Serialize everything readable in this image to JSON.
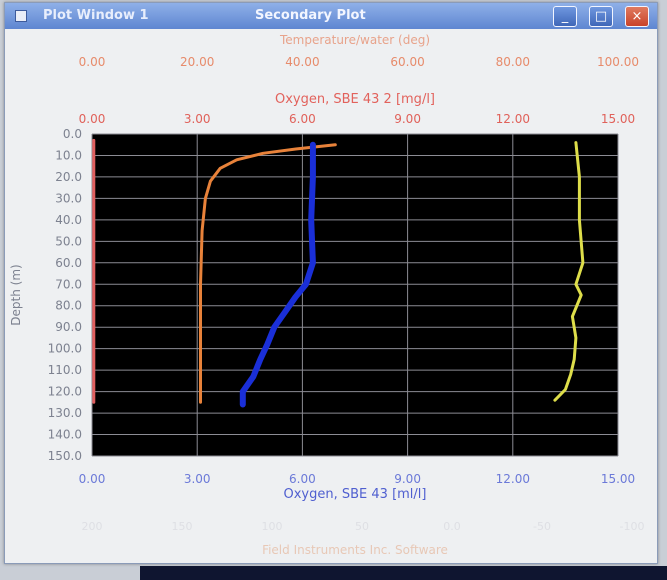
{
  "window": {
    "title_left": "Plot Window 1",
    "title_center": "Secondary Plot",
    "controls": {
      "minimize": "_",
      "maximize": "□",
      "close": "×"
    }
  },
  "chart_data": {
    "type": "line",
    "plot_background": "#000000",
    "grid": true,
    "depth_axis": {
      "label": "Depth (m)",
      "reversed": true,
      "range": [
        0,
        150
      ],
      "ticks": [
        "0.0",
        "10.0",
        "20.0",
        "30.0",
        "40.0",
        "50.0",
        "60.0",
        "70.0",
        "80.0",
        "90.0",
        "100.0",
        "110.0",
        "120.0",
        "130.0",
        "140.0",
        "150.0"
      ]
    },
    "top_axis_1": {
      "label": "Temperature/water (deg)",
      "range": [
        0,
        100
      ],
      "ticks": [
        "0.00",
        "20.00",
        "40.00",
        "60.00",
        "80.00",
        "100.00"
      ],
      "color": "#e78b6b"
    },
    "top_axis_2": {
      "label": "Oxygen, SBE 43 2 [mg/l]",
      "range": [
        0,
        16
      ],
      "ticks": [
        "0.00",
        "3.00",
        "6.00",
        "9.00",
        "12.00",
        "15.00"
      ],
      "color": "#e0615a"
    },
    "bottom_axis": {
      "label": "Oxygen, SBE 43 [ml/l]",
      "range": [
        0,
        15
      ],
      "ticks": [
        "0.00",
        "3.00",
        "6.00",
        "9.00",
        "12.00",
        "15.00"
      ],
      "color": "#4f5fd0"
    },
    "series": [
      {
        "axis": "top_axis_2",
        "color": "#e8823a",
        "width": 3,
        "points": [
          [
            7.4,
            5
          ],
          [
            6.2,
            7
          ],
          [
            5.2,
            9
          ],
          [
            4.4,
            12
          ],
          [
            3.9,
            16
          ],
          [
            3.6,
            22
          ],
          [
            3.45,
            30
          ],
          [
            3.35,
            45
          ],
          [
            3.3,
            70
          ],
          [
            3.3,
            100
          ],
          [
            3.3,
            125
          ]
        ]
      },
      {
        "axis": "bottom_axis",
        "color": "#1a2fd8",
        "width": 6,
        "points": [
          [
            6.3,
            5
          ],
          [
            6.3,
            20
          ],
          [
            6.25,
            40
          ],
          [
            6.3,
            60
          ],
          [
            6.1,
            70
          ],
          [
            5.8,
            76
          ],
          [
            5.5,
            83
          ],
          [
            5.2,
            90
          ],
          [
            5.0,
            98
          ],
          [
            4.8,
            105
          ],
          [
            4.6,
            113
          ],
          [
            4.3,
            120
          ],
          [
            4.3,
            126
          ]
        ]
      },
      {
        "axis": "bottom_axis",
        "color": "#dede4a",
        "width": 3,
        "points": [
          [
            13.8,
            4
          ],
          [
            13.9,
            20
          ],
          [
            13.9,
            40
          ],
          [
            14.0,
            60
          ],
          [
            13.8,
            70
          ],
          [
            13.95,
            75
          ],
          [
            13.7,
            85
          ],
          [
            13.8,
            95
          ],
          [
            13.75,
            105
          ],
          [
            13.65,
            112
          ],
          [
            13.5,
            119
          ],
          [
            13.2,
            124
          ]
        ]
      },
      {
        "axis": "bottom_axis",
        "color": "#e06060",
        "width": 3,
        "points": [
          [
            0.05,
            3
          ],
          [
            0.05,
            125
          ]
        ]
      }
    ],
    "footer": {
      "faint_ticks": [
        "200",
        "150",
        "100",
        "50",
        "0.0",
        "-50",
        "-100"
      ],
      "text": "Field Instruments Inc. Software"
    }
  }
}
